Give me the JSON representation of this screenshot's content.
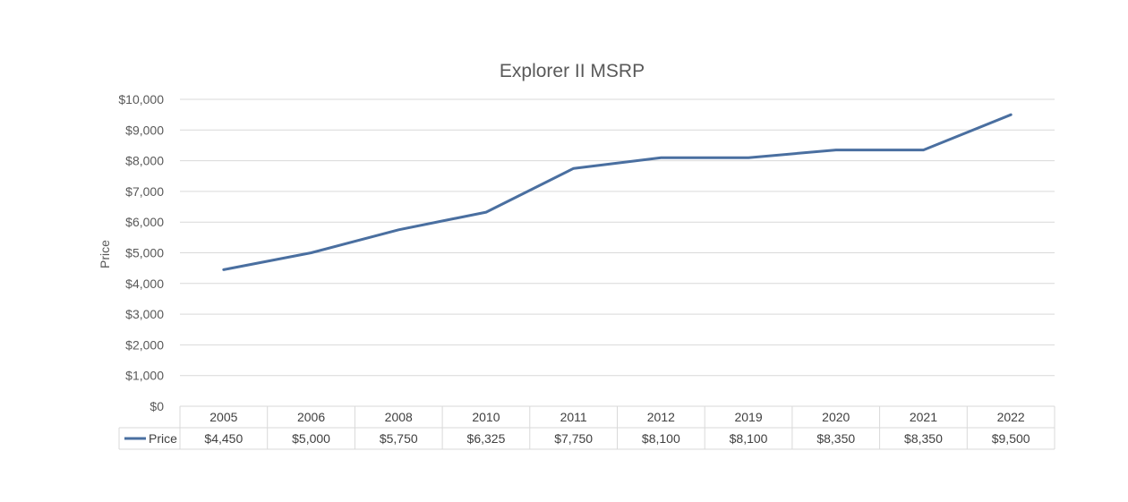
{
  "colors": {
    "series": "#4a6fa0",
    "grid": "#d9d9d9",
    "text": "#595959"
  },
  "chart_data": {
    "type": "line",
    "title": "Explorer II MSRP",
    "xlabel": "",
    "ylabel": "Price",
    "ylim": [
      0,
      10000
    ],
    "yticks": [
      "$0",
      "$1,000",
      "$2,000",
      "$3,000",
      "$4,000",
      "$5,000",
      "$6,000",
      "$7,000",
      "$8,000",
      "$9,000",
      "$10,000"
    ],
    "grid": true,
    "legend": "data-table",
    "categories": [
      "2005",
      "2006",
      "2008",
      "2010",
      "2011",
      "2012",
      "2019",
      "2020",
      "2021",
      "2022"
    ],
    "series": [
      {
        "name": "Price",
        "values": [
          4450,
          5000,
          5750,
          6325,
          7750,
          8100,
          8100,
          8350,
          8350,
          9500
        ],
        "labels": [
          "$4,450",
          "$5,000",
          "$5,750",
          "$6,325",
          "$7,750",
          "$8,100",
          "$8,100",
          "$8,350",
          "$8,350",
          "$9,500"
        ]
      }
    ]
  }
}
